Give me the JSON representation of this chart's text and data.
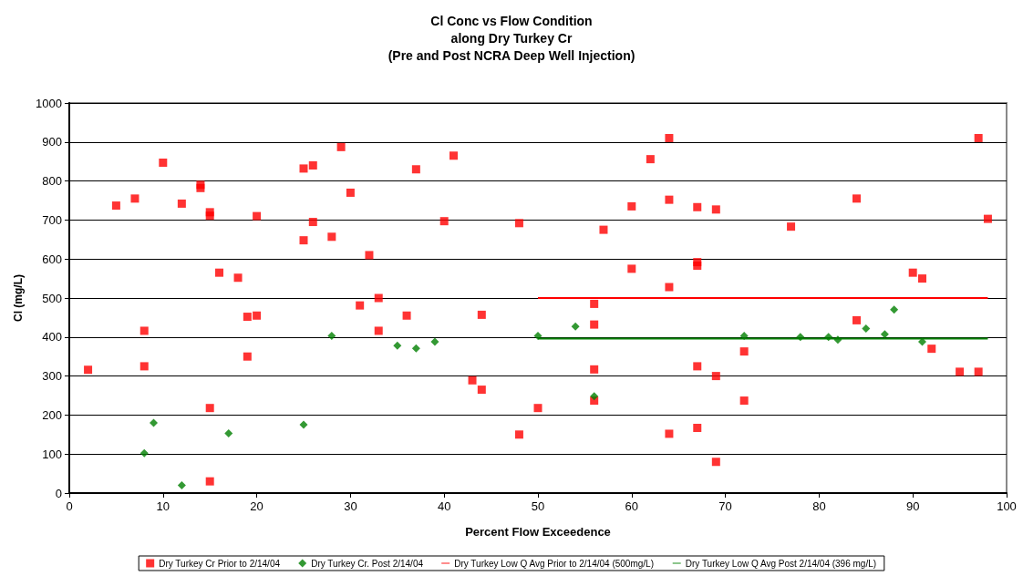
{
  "chart_data": {
    "type": "scatter",
    "title": "Cl Conc vs Flow Condition\nalong Dry Turkey Cr\n(Pre and Post NCRA Deep Well Injection)",
    "xlabel": "Percent Flow Exceedence",
    "ylabel": "Cl (mg/L)",
    "xlim": [
      0,
      100
    ],
    "xticks": [
      0,
      10,
      20,
      30,
      40,
      50,
      60,
      70,
      80,
      90,
      100
    ],
    "ylim": [
      0,
      1000
    ],
    "yticks": [
      0,
      100,
      200,
      300,
      400,
      500,
      600,
      700,
      800,
      900,
      1000
    ],
    "grid": "y",
    "legend": "bottom",
    "series": [
      {
        "name": "Dry Turkey Cr Prior to 2/14/04",
        "marker": "square",
        "color": "#ff0000",
        "x": [
          2,
          5,
          7,
          8,
          8,
          10,
          12,
          14,
          14,
          15,
          15,
          15,
          15,
          16,
          18,
          19,
          19,
          20,
          20,
          25,
          25,
          26,
          26,
          28,
          29,
          30,
          31,
          32,
          33,
          33,
          36,
          37,
          40,
          41,
          43,
          44,
          44,
          48,
          48,
          50,
          56,
          56,
          56,
          56,
          57,
          60,
          60,
          62,
          64,
          64,
          64,
          64,
          67,
          67,
          67,
          67,
          67,
          69,
          69,
          69,
          72,
          72,
          77,
          84,
          84,
          90,
          91,
          92,
          95,
          97,
          97,
          98
        ],
        "values": [
          316,
          737,
          755,
          416,
          325,
          847,
          742,
          790,
          782,
          720,
          711,
          218,
          30,
          565,
          552,
          452,
          350,
          710,
          455,
          832,
          648,
          840,
          695,
          657,
          887,
          770,
          481,
          610,
          500,
          416,
          455,
          830,
          697,
          865,
          289,
          457,
          265,
          692,
          150,
          218,
          485,
          432,
          317,
          237,
          675,
          735,
          575,
          856,
          910,
          752,
          528,
          152,
          733,
          592,
          583,
          325,
          167,
          727,
          300,
          80,
          363,
          237,
          683,
          755,
          443,
          565,
          550,
          370,
          311,
          910,
          311,
          703
        ]
      },
      {
        "name": "Dry Turkey Cr. Post 2/14/04",
        "marker": "diamond",
        "color": "#008000",
        "x": [
          8,
          9,
          12,
          17,
          25,
          28,
          35,
          37,
          39,
          50,
          54,
          56,
          72,
          78,
          81,
          82,
          85,
          87,
          88,
          91
        ],
        "values": [
          102,
          180,
          20,
          153,
          175,
          403,
          378,
          371,
          388,
          403,
          427,
          248,
          403,
          400,
          400,
          393,
          422,
          407,
          470,
          388
        ]
      },
      {
        "name": "Dry Turkey Low Q Avg Prior to 2/14/04 (500mg/L)",
        "type": "line",
        "marker": "none",
        "line_style": "solid",
        "color": "#ff0000",
        "x": [
          50,
          98
        ],
        "values": [
          500,
          500
        ]
      },
      {
        "name": "Dry Turkey Low Q Avg Post 2/14/04 (396 mg/L)",
        "type": "line",
        "marker": "none",
        "line_style": "solid",
        "color": "#008000",
        "x": [
          50,
          98
        ],
        "values": [
          396,
          396
        ]
      }
    ]
  }
}
